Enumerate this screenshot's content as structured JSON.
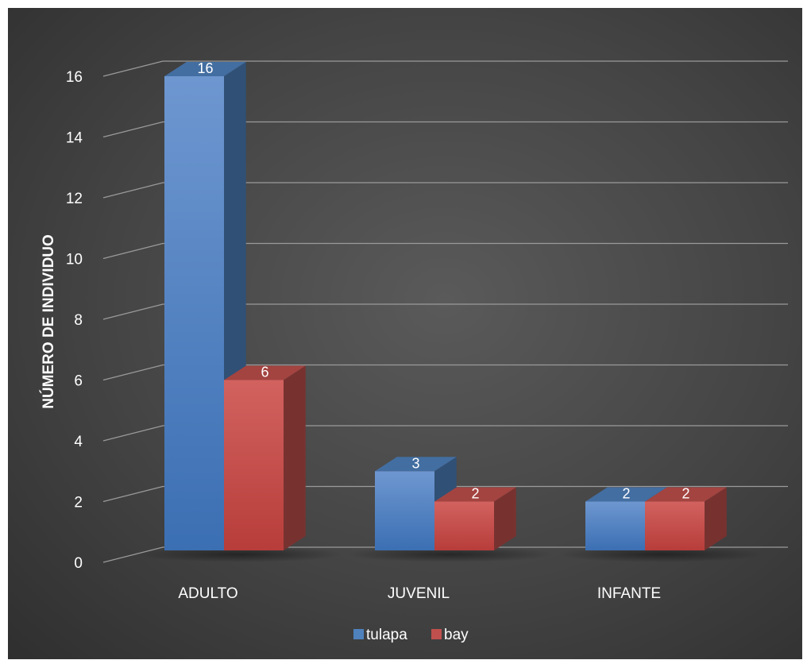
{
  "chart_data": {
    "type": "bar",
    "title": "",
    "xlabel": "",
    "ylabel": "NÚMERO DE INDIVIDUO",
    "ylim": [
      0,
      16
    ],
    "ystep": 2,
    "yticks": [
      "0",
      "2",
      "4",
      "6",
      "8",
      "10",
      "12",
      "14",
      "16"
    ],
    "categories": [
      "ADULTO",
      "JUVENIL",
      "INFANTE"
    ],
    "series": [
      {
        "name": "tulapa",
        "values": [
          16,
          3,
          2
        ],
        "color": "#4f81bd"
      },
      {
        "name": "bay",
        "values": [
          6,
          2,
          2
        ],
        "color": "#c0504d"
      }
    ],
    "data_labels": true,
    "grid": true,
    "legend": "bottom",
    "style": "3d-clustered-column",
    "background": "dark"
  }
}
